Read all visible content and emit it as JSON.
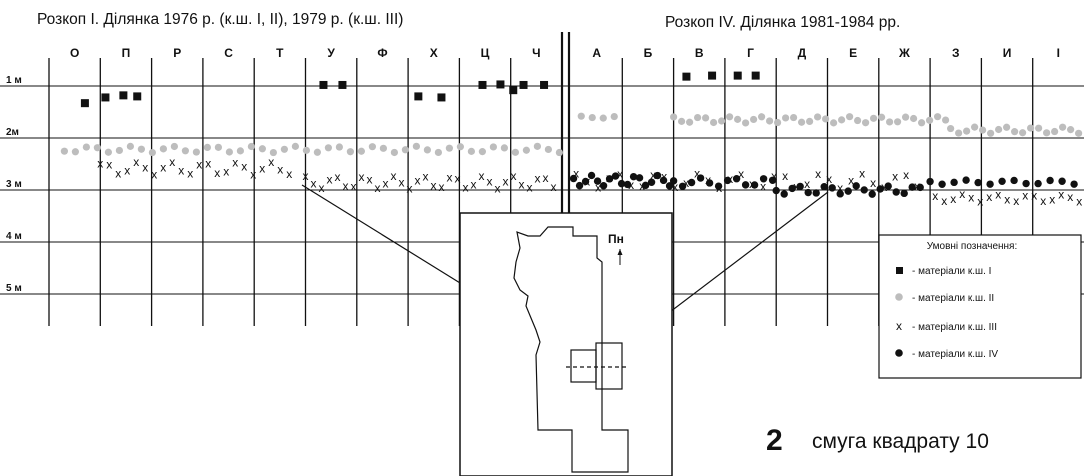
{
  "titles": {
    "left": "Розкоп І. Ділянка 1976 р. (к.ш. І, ІІ), 1979 р. (к.ш. ІІІ)",
    "right": "Розкоп IV. Ділянка 1981-1984 рр."
  },
  "columns_left": [
    "О",
    "П",
    "Р",
    "С",
    "Т",
    "У",
    "Ф",
    "Х",
    "Ц",
    "Ч"
  ],
  "columns_right": [
    "А",
    "Б",
    "В",
    "Г",
    "Д",
    "Е",
    "Ж",
    "З",
    "И",
    "І"
  ],
  "depths": [
    "1 м",
    "2м",
    "3 м",
    "4 м",
    "5 м"
  ],
  "north_label": "Пн",
  "legend": {
    "title": "Умовні позначення:",
    "items": [
      {
        "symbol": "square",
        "label": "- матеріали к.ш. І"
      },
      {
        "symbol": "grey-circle",
        "label": "- матеріали к.ш. ІІ"
      },
      {
        "symbol": "cross",
        "label": "- матеріали к.ш. ІІІ"
      },
      {
        "symbol": "black-circle",
        "label": "- матеріали к.ш. IV"
      }
    ]
  },
  "caption": {
    "number": "2",
    "text": "смуга квадрату 10"
  },
  "colors": {
    "ink": "#111111",
    "layer2_grey": "#bdbdbd"
  },
  "depth_scale": {
    "min_m": 1,
    "max_m": 5
  },
  "finds": {
    "layer1_squares": [
      {
        "col": "О",
        "pos": 0.7,
        "depth_m": 1.33
      },
      {
        "col": "П",
        "pos": 0.1,
        "depth_m": 1.22
      },
      {
        "col": "П",
        "pos": 0.45,
        "depth_m": 1.18
      },
      {
        "col": "П",
        "pos": 0.72,
        "depth_m": 1.2
      },
      {
        "col": "У",
        "pos": 0.35,
        "depth_m": 0.98
      },
      {
        "col": "У",
        "pos": 0.72,
        "depth_m": 0.98
      },
      {
        "col": "Х",
        "pos": 0.2,
        "depth_m": 1.2
      },
      {
        "col": "Х",
        "pos": 0.65,
        "depth_m": 1.22
      },
      {
        "col": "Ц",
        "pos": 0.45,
        "depth_m": 0.98
      },
      {
        "col": "Ц",
        "pos": 0.8,
        "depth_m": 0.97
      },
      {
        "col": "Ч",
        "pos": 0.05,
        "depth_m": 1.08
      },
      {
        "col": "Ч",
        "pos": 0.25,
        "depth_m": 0.98
      },
      {
        "col": "Ч",
        "pos": 0.65,
        "depth_m": 0.98
      },
      {
        "col": "В",
        "pos": 0.25,
        "depth_m": 0.82
      },
      {
        "col": "В",
        "pos": 0.75,
        "depth_m": 0.8
      },
      {
        "col": "Г",
        "pos": 0.25,
        "depth_m": 0.8
      },
      {
        "col": "Г",
        "pos": 0.6,
        "depth_m": 0.8
      }
    ],
    "layer2_bands": [
      {
        "from_col": "О",
        "from_pos": 0.3,
        "to_col": "Ч",
        "to_pos": 0.95,
        "depth_m": 2.22,
        "spread": 0.06,
        "step": 11
      },
      {
        "from_col": "А",
        "from_pos": 0.2,
        "to_col": "А",
        "to_pos": 0.9,
        "depth_m": 1.6,
        "spread": 0.02,
        "step": 11
      },
      {
        "from_col": "В",
        "from_pos": 0.0,
        "to_col": "З",
        "to_pos": 0.4,
        "depth_m": 1.65,
        "spread": 0.06,
        "step": 8
      },
      {
        "from_col": "З",
        "from_pos": 0.4,
        "to_col": "І",
        "to_pos": 1.0,
        "depth_m": 1.85,
        "spread": 0.06,
        "step": 8
      }
    ],
    "layer3_bands": [
      {
        "from_col": "П",
        "from_pos": 0.0,
        "to_col": "Т",
        "to_pos": 0.8,
        "depth_m": 2.58,
        "spread": 0.12,
        "step": 9
      },
      {
        "from_col": "У",
        "from_pos": 0.0,
        "to_col": "Ч",
        "to_pos": 0.95,
        "depth_m": 2.85,
        "spread": 0.12,
        "step": 8
      },
      {
        "from_col": "А",
        "from_pos": 0.1,
        "to_col": "Ж",
        "to_pos": 0.9,
        "depth_m": 2.82,
        "spread": 0.14,
        "step": 11
      },
      {
        "from_col": "З",
        "from_pos": 0.1,
        "to_col": "І",
        "to_pos": 1.0,
        "depth_m": 3.15,
        "spread": 0.07,
        "step": 9
      }
    ],
    "layer4_bands": [
      {
        "from_col": "А",
        "from_pos": 0.05,
        "to_col": "Б",
        "to_pos": 0.95,
        "depth_m": 2.82,
        "spread": 0.1,
        "step": 6
      },
      {
        "from_col": "В",
        "from_pos": 0.0,
        "to_col": "Г",
        "to_pos": 0.95,
        "depth_m": 2.85,
        "spread": 0.08,
        "step": 9
      },
      {
        "from_col": "Д",
        "from_pos": 0.0,
        "to_col": "Ж",
        "to_pos": 0.9,
        "depth_m": 3.0,
        "spread": 0.08,
        "step": 8
      },
      {
        "from_col": "З",
        "from_pos": 0.0,
        "to_col": "І",
        "to_pos": 1.0,
        "depth_m": 2.85,
        "spread": 0.04,
        "step": 12
      }
    ]
  }
}
